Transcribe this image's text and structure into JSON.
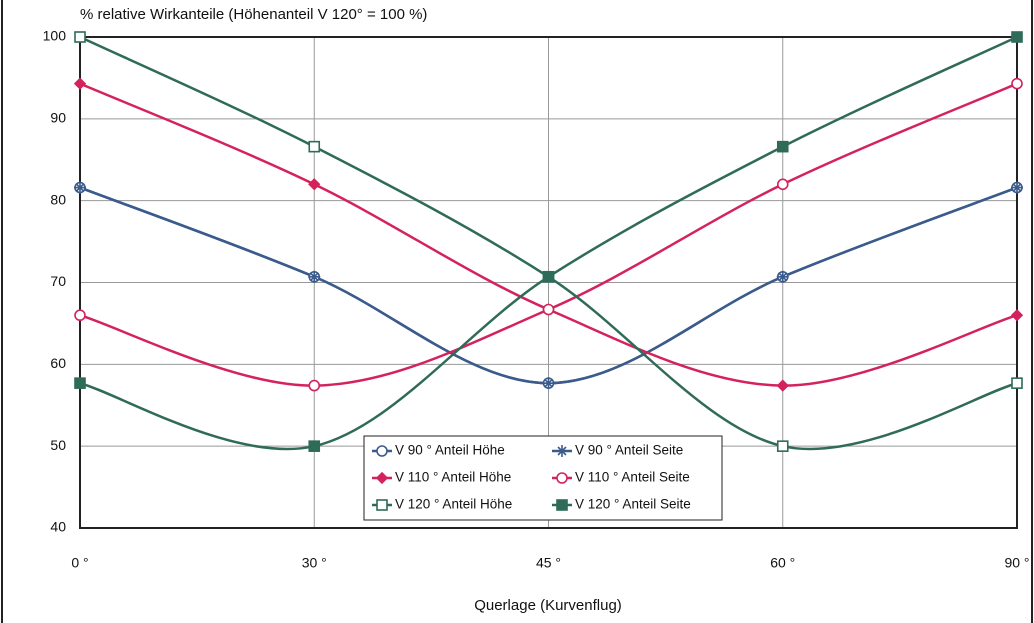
{
  "chart_data": {
    "type": "line",
    "title": "% relative Wirkanteile (Höhenanteil V 120° = 100 %)",
    "x_label": "Querlage (Kurvenflug)",
    "categories": [
      "0 °",
      "30 °",
      "45 °",
      "60 °",
      "90 °"
    ],
    "ylim": [
      40,
      100
    ],
    "yticks": [
      40,
      50,
      60,
      70,
      80,
      90,
      100
    ],
    "grid": true,
    "series": [
      {
        "name": "V 90 ° Anteil Höhe",
        "color": "#3b5b8c",
        "marker": "circle-open",
        "values": [
          81.6,
          70.7,
          57.7,
          70.7,
          81.6
        ]
      },
      {
        "name": "V  90 ° Anteil Seite",
        "color": "#3b5b8c",
        "marker": "star",
        "values": [
          81.6,
          70.7,
          57.7,
          70.7,
          81.6
        ]
      },
      {
        "name": "V 110 ° Anteil Höhe",
        "color": "#d4235c",
        "marker": "diamond",
        "values": [
          94.3,
          82,
          66.7,
          57.4,
          66
        ]
      },
      {
        "name": "V 110 ° Anteil Seite",
        "color": "#d4235c",
        "marker": "circle-open",
        "values": [
          66,
          57.4,
          66.7,
          82,
          94.3
        ]
      },
      {
        "name": "V 120 ° Anteil Höhe",
        "color": "#2f6b58",
        "marker": "square-open",
        "values": [
          100,
          86.6,
          70.7,
          50,
          57.7
        ]
      },
      {
        "name": "V 120 ° Anteil Seite",
        "color": "#2f6b58",
        "marker": "square",
        "values": [
          57.7,
          50,
          70.7,
          86.6,
          100
        ]
      }
    ]
  }
}
